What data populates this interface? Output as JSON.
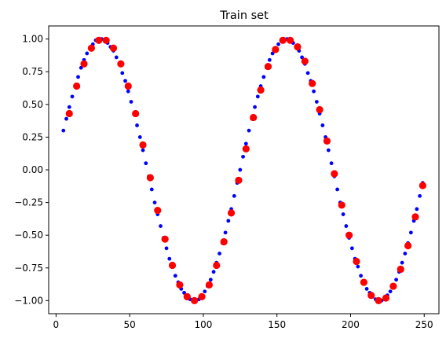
{
  "chart_data": {
    "type": "scatter",
    "title": "Train set",
    "xlabel": "",
    "ylabel": "",
    "xlim": [
      -5,
      260
    ],
    "ylim": [
      -1.1,
      1.1
    ],
    "x_ticks": [
      0,
      50,
      100,
      150,
      200,
      250
    ],
    "x_tick_labels": [
      "0",
      "50",
      "100",
      "150",
      "200",
      "250"
    ],
    "y_ticks": [
      1.0,
      0.75,
      0.5,
      0.25,
      0.0,
      -0.25,
      -0.5,
      -0.75,
      -1.0
    ],
    "y_tick_labels": [
      "1.00",
      "0.75",
      "0.50",
      "0.25",
      "0.00",
      "−0.25",
      "−0.50",
      "−0.75",
      "−1.00"
    ],
    "grid": false,
    "series": [
      {
        "marker": "small-dot",
        "color": "#0000ff",
        "curve": "sin(2*pi*(x+1)/125)",
        "x_start": 5,
        "x_end": 249,
        "x_step": 2,
        "x": [
          5,
          7,
          9,
          11,
          13,
          15,
          17,
          19,
          21,
          23,
          25,
          27,
          29,
          31,
          33,
          35,
          37,
          39,
          41,
          43,
          45,
          47,
          49,
          51,
          53,
          55,
          57,
          59,
          61,
          63,
          65,
          67,
          69,
          71,
          73,
          75,
          77,
          79,
          81,
          83,
          85,
          87,
          89,
          91,
          93,
          95,
          97,
          99,
          101,
          103,
          105,
          107,
          109,
          111,
          113,
          115,
          117,
          119,
          121,
          123,
          125,
          127,
          129,
          131,
          133,
          135,
          137,
          139,
          141,
          143,
          145,
          147,
          149,
          151,
          153,
          155,
          157,
          159,
          161,
          163,
          165,
          167,
          169,
          171,
          173,
          175,
          177,
          179,
          181,
          183,
          185,
          187,
          189,
          191,
          193,
          195,
          197,
          199,
          201,
          203,
          205,
          207,
          209,
          211,
          213,
          215,
          217,
          219,
          221,
          223,
          225,
          227,
          229,
          231,
          233,
          235,
          237,
          239,
          241,
          243,
          245,
          247,
          249
        ],
        "y": [
          0.3,
          0.39,
          0.48,
          0.56,
          0.64,
          0.71,
          0.78,
          0.84,
          0.89,
          0.93,
          0.96,
          0.99,
          1.0,
          1.0,
          0.99,
          0.97,
          0.94,
          0.91,
          0.86,
          0.81,
          0.74,
          0.68,
          0.6,
          0.52,
          0.43,
          0.34,
          0.25,
          0.15,
          0.05,
          -0.05,
          -0.15,
          -0.25,
          -0.34,
          -0.43,
          -0.52,
          -0.6,
          -0.68,
          -0.74,
          -0.81,
          -0.86,
          -0.91,
          -0.94,
          -0.97,
          -0.99,
          -1.0,
          -1.0,
          -0.99,
          -0.96,
          -0.93,
          -0.89,
          -0.84,
          -0.78,
          -0.71,
          -0.64,
          -0.56,
          -0.48,
          -0.39,
          -0.3,
          -0.2,
          -0.1,
          0.0,
          0.1,
          0.2,
          0.3,
          0.39,
          0.48,
          0.56,
          0.64,
          0.71,
          0.78,
          0.84,
          0.89,
          0.93,
          0.96,
          0.99,
          1.0,
          1.0,
          0.99,
          0.97,
          0.94,
          0.91,
          0.86,
          0.81,
          0.74,
          0.68,
          0.6,
          0.52,
          0.43,
          0.34,
          0.25,
          0.15,
          0.05,
          -0.05,
          -0.15,
          -0.25,
          -0.34,
          -0.43,
          -0.52,
          -0.6,
          -0.68,
          -0.74,
          -0.81,
          -0.86,
          -0.91,
          -0.94,
          -0.97,
          -0.99,
          -1.0,
          -1.0,
          -0.99,
          -0.96,
          -0.93,
          -0.89,
          -0.84,
          -0.78,
          -0.71,
          -0.64,
          -0.56,
          -0.48,
          -0.39,
          -0.3,
          -0.2,
          -0.1
        ]
      },
      {
        "marker": "circle",
        "color": "#ff0000",
        "x": [
          9,
          14,
          19,
          24,
          29,
          34,
          39,
          44,
          49,
          54,
          59,
          64,
          69,
          74,
          79,
          84,
          89,
          94,
          99,
          104,
          109,
          114,
          119,
          124,
          129,
          134,
          139,
          144,
          149,
          154,
          159,
          164,
          169,
          174,
          179,
          184,
          189,
          194,
          199,
          204,
          209,
          214,
          219,
          224,
          229,
          234,
          239,
          244,
          249
        ],
        "y": [
          0.43,
          0.64,
          0.81,
          0.93,
          0.99,
          0.99,
          0.93,
          0.81,
          0.64,
          0.43,
          0.19,
          -0.06,
          -0.31,
          -0.53,
          -0.73,
          -0.88,
          -0.97,
          -1.0,
          -0.97,
          -0.88,
          -0.73,
          -0.55,
          -0.33,
          -0.08,
          0.16,
          0.4,
          0.61,
          0.79,
          0.92,
          0.99,
          0.99,
          0.94,
          0.83,
          0.66,
          0.46,
          0.22,
          -0.03,
          -0.27,
          -0.5,
          -0.7,
          -0.86,
          -0.96,
          -1.0,
          -0.98,
          -0.89,
          -0.76,
          -0.58,
          -0.36,
          -0.12
        ]
      }
    ]
  }
}
